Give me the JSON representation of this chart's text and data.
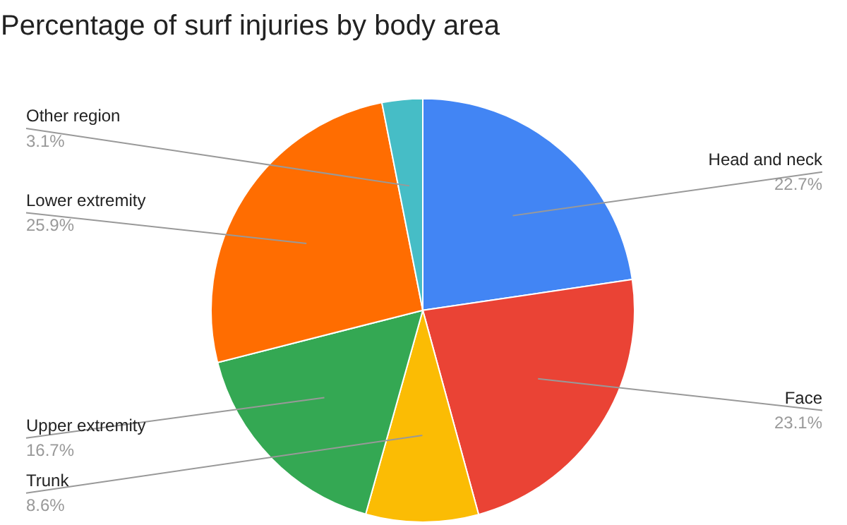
{
  "chart_data": {
    "type": "pie",
    "title": "Percentage of surf injuries by body area",
    "categories": [
      "Head and neck",
      "Face",
      "Trunk",
      "Upper extremity",
      "Lower extremity",
      "Other region"
    ],
    "values": [
      22.7,
      23.1,
      8.6,
      16.7,
      25.9,
      3.1
    ],
    "value_labels": [
      "22.7%",
      "23.1%",
      "8.6%",
      "16.7%",
      "25.9%",
      "3.1%"
    ],
    "colors": [
      "#4285f4",
      "#ea4335",
      "#fbbc04",
      "#34a853",
      "#ff6d01",
      "#46bdc6"
    ]
  }
}
